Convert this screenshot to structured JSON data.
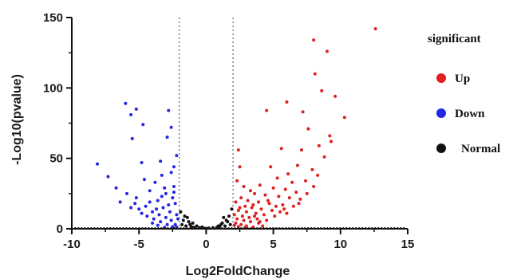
{
  "chart_data": {
    "type": "scatter",
    "title": "",
    "xlabel": "Log2FoldChange",
    "ylabel": "-Log10(pvalue)",
    "xlim": [
      -10,
      15
    ],
    "ylim": [
      0,
      150
    ],
    "x_ticks": [
      "-10",
      "-5",
      "0",
      "5",
      "10",
      "15"
    ],
    "y_ticks": [
      "0",
      "50",
      "100",
      "150"
    ],
    "thresholds": {
      "x": [
        -2,
        2
      ]
    },
    "legend": {
      "title": "significant",
      "position": "right",
      "items": [
        {
          "label": "Up",
          "color": "#e0201e"
        },
        {
          "label": "Down",
          "color": "#2326e6"
        },
        {
          "label": "Normal",
          "color": "#111111"
        }
      ]
    },
    "series": [
      {
        "name": "Up",
        "color": "#e0201e",
        "points": [
          [
            12.6,
            142
          ],
          [
            8.0,
            134
          ],
          [
            9.0,
            126
          ],
          [
            8.1,
            110
          ],
          [
            8.6,
            98
          ],
          [
            9.6,
            94
          ],
          [
            10.3,
            79
          ],
          [
            6.0,
            90
          ],
          [
            7.2,
            83
          ],
          [
            4.5,
            84
          ],
          [
            7.6,
            71
          ],
          [
            9.2,
            66
          ],
          [
            8.4,
            59
          ],
          [
            5.6,
            57
          ],
          [
            7.1,
            56
          ],
          [
            9.3,
            62
          ],
          [
            8.8,
            51
          ],
          [
            6.8,
            45
          ],
          [
            4.8,
            44
          ],
          [
            7.9,
            42
          ],
          [
            6.1,
            39
          ],
          [
            5.3,
            36
          ],
          [
            8.3,
            38
          ],
          [
            4.0,
            31
          ],
          [
            6.4,
            33
          ],
          [
            7.4,
            34
          ],
          [
            5.0,
            29
          ],
          [
            3.3,
            27
          ],
          [
            5.9,
            28
          ],
          [
            6.7,
            26
          ],
          [
            2.4,
            56
          ],
          [
            2.5,
            44
          ],
          [
            2.3,
            34
          ],
          [
            2.8,
            30
          ],
          [
            3.6,
            25
          ],
          [
            4.4,
            24
          ],
          [
            5.4,
            23
          ],
          [
            6.2,
            22
          ],
          [
            7.0,
            21
          ],
          [
            2.6,
            22
          ],
          [
            3.1,
            20
          ],
          [
            3.9,
            19
          ],
          [
            4.7,
            18
          ],
          [
            5.7,
            17
          ],
          [
            6.5,
            16
          ],
          [
            2.2,
            19
          ],
          [
            2.9,
            16
          ],
          [
            3.4,
            15
          ],
          [
            4.1,
            14
          ],
          [
            4.9,
            13
          ],
          [
            5.5,
            12
          ],
          [
            6.0,
            11
          ],
          [
            2.4,
            13
          ],
          [
            3.0,
            12
          ],
          [
            3.7,
            11
          ],
          [
            4.3,
            10
          ],
          [
            5.1,
            9
          ],
          [
            2.1,
            10
          ],
          [
            2.7,
            9
          ],
          [
            3.2,
            8
          ],
          [
            3.8,
            7
          ],
          [
            4.5,
            6
          ],
          [
            2.3,
            7
          ],
          [
            2.8,
            6
          ],
          [
            3.3,
            5
          ],
          [
            3.9,
            4
          ],
          [
            2.2,
            4
          ],
          [
            2.6,
            3
          ],
          [
            3.0,
            2
          ],
          [
            2.4,
            1.5
          ],
          [
            2.9,
            1
          ],
          [
            3.5,
            1.2
          ],
          [
            4.2,
            2
          ],
          [
            2.1,
            2.5
          ],
          [
            5.8,
            14
          ],
          [
            6.9,
            18
          ],
          [
            7.5,
            25
          ],
          [
            8.0,
            30
          ],
          [
            4.6,
            20
          ],
          [
            3.5,
            17
          ],
          [
            2.5,
            15
          ],
          [
            5.2,
            16
          ],
          [
            3.6,
            9
          ],
          [
            4.0,
            5
          ]
        ]
      },
      {
        "name": "Down",
        "color": "#2326e6",
        "points": [
          [
            -6.0,
            89
          ],
          [
            -5.2,
            85
          ],
          [
            -2.8,
            84
          ],
          [
            -5.6,
            81
          ],
          [
            -4.7,
            74
          ],
          [
            -5.5,
            64
          ],
          [
            -2.9,
            65
          ],
          [
            -2.6,
            72
          ],
          [
            -8.1,
            46
          ],
          [
            -3.4,
            48
          ],
          [
            -4.8,
            47
          ],
          [
            -7.3,
            37
          ],
          [
            -4.6,
            35
          ],
          [
            -3.3,
            38
          ],
          [
            -3.8,
            33
          ],
          [
            -6.7,
            29
          ],
          [
            -2.4,
            30
          ],
          [
            -5.9,
            25
          ],
          [
            -4.2,
            27
          ],
          [
            -3.0,
            25
          ],
          [
            -6.4,
            19
          ],
          [
            -5.3,
            18
          ],
          [
            -4.5,
            16
          ],
          [
            -3.6,
            20
          ],
          [
            -2.5,
            22
          ],
          [
            -5.0,
            14
          ],
          [
            -4.0,
            12
          ],
          [
            -3.2,
            15
          ],
          [
            -2.3,
            18
          ],
          [
            -4.4,
            9
          ],
          [
            -3.5,
            10
          ],
          [
            -2.7,
            12
          ],
          [
            -3.9,
            7
          ],
          [
            -3.0,
            8
          ],
          [
            -2.2,
            10
          ],
          [
            -3.4,
            5
          ],
          [
            -2.6,
            6
          ],
          [
            -2.1,
            7
          ],
          [
            -2.9,
            3
          ],
          [
            -2.3,
            3
          ],
          [
            -2.5,
            1.5
          ],
          [
            -3.1,
            1
          ],
          [
            -2.2,
            1.2
          ],
          [
            -4.8,
            11
          ],
          [
            -5.6,
            15
          ],
          [
            -3.7,
            14
          ],
          [
            -4.2,
            19
          ],
          [
            -2.8,
            17
          ],
          [
            -2.4,
            26
          ],
          [
            -3.1,
            29
          ],
          [
            -2.6,
            40
          ],
          [
            -5.2,
            22
          ],
          [
            -3.3,
            23
          ],
          [
            -4.0,
            4
          ],
          [
            -3.6,
            2.5
          ],
          [
            -2.4,
            44
          ],
          [
            -2.2,
            52
          ]
        ]
      },
      {
        "name": "Normal",
        "color": "#111111",
        "points": [
          [
            -1.9,
            12
          ],
          [
            -1.6,
            9
          ],
          [
            -1.7,
            6
          ],
          [
            -1.3,
            5
          ],
          [
            -1.8,
            3
          ],
          [
            -1.5,
            2
          ],
          [
            -1.1,
            1.5
          ],
          [
            -0.9,
            1
          ],
          [
            -0.5,
            0.8
          ],
          [
            -1.2,
            3
          ],
          [
            -1.0,
            4
          ],
          [
            -0.7,
            2
          ],
          [
            1.9,
            14
          ],
          [
            1.7,
            9
          ],
          [
            1.5,
            6
          ],
          [
            1.2,
            4
          ],
          [
            1.8,
            3
          ],
          [
            1.4,
            2
          ],
          [
            1.0,
            1.5
          ],
          [
            0.8,
            1
          ],
          [
            0.5,
            0.8
          ],
          [
            1.1,
            3
          ],
          [
            1.6,
            5
          ],
          [
            0.9,
            2
          ],
          [
            -0.2,
            0.5
          ],
          [
            0.2,
            0.5
          ],
          [
            0.0,
            0.3
          ],
          [
            -1.4,
            8
          ],
          [
            1.3,
            8
          ],
          [
            -0.3,
            1.2
          ]
        ]
      }
    ]
  }
}
